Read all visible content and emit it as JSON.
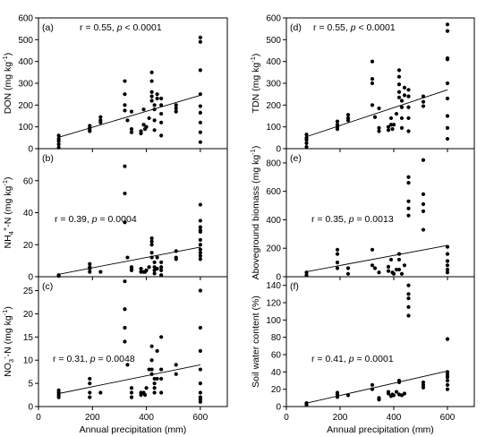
{
  "chart_data": {
    "type": "scatter",
    "layout": "3x2 panels sharing x axis",
    "xlabel": "Annual precipitation (mm)",
    "xlim": [
      0,
      700
    ],
    "xticks": [
      0,
      200,
      400,
      600
    ],
    "panels": [
      {
        "id": "a",
        "label": "(a)",
        "r_text": "r = 0.55, ",
        "p_text": "p < 0.0001",
        "ylabel": [
          "DON (mg kg",
          "-1",
          ")"
        ],
        "ylim": [
          0,
          600
        ],
        "yticks": [
          0,
          100,
          200,
          300,
          400,
          500,
          600
        ],
        "fit": [
          [
            75,
            52
          ],
          [
            600,
            245
          ]
        ],
        "points": [
          [
            75,
            60
          ],
          [
            75,
            45
          ],
          [
            75,
            35
          ],
          [
            75,
            20
          ],
          [
            75,
            5
          ],
          [
            190,
            105
          ],
          [
            190,
            95
          ],
          [
            190,
            85
          ],
          [
            190,
            80
          ],
          [
            230,
            145
          ],
          [
            230,
            130
          ],
          [
            230,
            120
          ],
          [
            320,
            310
          ],
          [
            320,
            250
          ],
          [
            320,
            200
          ],
          [
            320,
            175
          ],
          [
            330,
            130
          ],
          [
            345,
            170
          ],
          [
            345,
            90
          ],
          [
            345,
            75
          ],
          [
            380,
            80
          ],
          [
            380,
            70
          ],
          [
            390,
            180
          ],
          [
            390,
            110
          ],
          [
            395,
            90
          ],
          [
            400,
            100
          ],
          [
            410,
            140
          ],
          [
            420,
            350
          ],
          [
            420,
            310
          ],
          [
            420,
            260
          ],
          [
            420,
            240
          ],
          [
            420,
            220
          ],
          [
            430,
            200
          ],
          [
            430,
            180
          ],
          [
            430,
            130
          ],
          [
            430,
            85
          ],
          [
            440,
            250
          ],
          [
            440,
            230
          ],
          [
            455,
            230
          ],
          [
            455,
            200
          ],
          [
            455,
            160
          ],
          [
            455,
            120
          ],
          [
            455,
            60
          ],
          [
            510,
            200
          ],
          [
            510,
            185
          ],
          [
            510,
            170
          ],
          [
            600,
            510
          ],
          [
            600,
            490
          ],
          [
            600,
            360
          ],
          [
            600,
            250
          ],
          [
            600,
            195
          ],
          [
            600,
            165
          ],
          [
            600,
            120
          ],
          [
            600,
            75
          ],
          [
            600,
            30
          ]
        ]
      },
      {
        "id": "b",
        "label": "(b)",
        "r_text": "r = 0.39, ",
        "p_text": "p = 0.0004",
        "ylabel": [
          "NH",
          "4",
          "+",
          "-N (mg kg",
          "-1",
          ")"
        ],
        "ylim": [
          0,
          80
        ],
        "yticks": [
          0,
          20,
          40,
          60
        ],
        "fit": [
          [
            75,
            1.5
          ],
          [
            600,
            18.5
          ]
        ],
        "points": [
          [
            75,
            1
          ],
          [
            75,
            0.5
          ],
          [
            190,
            8
          ],
          [
            190,
            6
          ],
          [
            190,
            5
          ],
          [
            190,
            3
          ],
          [
            230,
            3
          ],
          [
            320,
            69
          ],
          [
            320,
            52
          ],
          [
            320,
            34
          ],
          [
            330,
            12
          ],
          [
            345,
            6
          ],
          [
            345,
            5
          ],
          [
            345,
            4
          ],
          [
            380,
            5
          ],
          [
            380,
            3
          ],
          [
            390,
            3
          ],
          [
            395,
            3
          ],
          [
            400,
            4
          ],
          [
            410,
            6
          ],
          [
            420,
            24
          ],
          [
            420,
            22
          ],
          [
            420,
            20
          ],
          [
            420,
            15
          ],
          [
            420,
            12
          ],
          [
            430,
            9
          ],
          [
            430,
            6
          ],
          [
            430,
            4
          ],
          [
            430,
            2
          ],
          [
            440,
            12
          ],
          [
            440,
            5
          ],
          [
            455,
            9
          ],
          [
            455,
            6
          ],
          [
            455,
            4
          ],
          [
            455,
            1
          ],
          [
            510,
            16
          ],
          [
            510,
            12
          ],
          [
            510,
            11
          ],
          [
            600,
            45
          ],
          [
            600,
            35
          ],
          [
            600,
            31
          ],
          [
            600,
            29
          ],
          [
            600,
            28
          ],
          [
            600,
            23
          ],
          [
            600,
            20
          ],
          [
            600,
            17
          ],
          [
            600,
            15
          ],
          [
            600,
            13
          ],
          [
            600,
            11
          ]
        ]
      },
      {
        "id": "c",
        "label": "(c)",
        "r_text": "r = 0.31, ",
        "p_text": "p = 0.0048",
        "ylabel": [
          "NO",
          "3",
          "-",
          "-N (mg kg",
          "-1",
          ")"
        ],
        "ylim": [
          0,
          28
        ],
        "yticks": [
          0,
          5,
          10,
          15,
          20,
          25
        ],
        "fit": [
          [
            75,
            2.8
          ],
          [
            600,
            9.0
          ]
        ],
        "points": [
          [
            75,
            3.5
          ],
          [
            75,
            3
          ],
          [
            75,
            2.5
          ],
          [
            75,
            2
          ],
          [
            190,
            6
          ],
          [
            190,
            5
          ],
          [
            190,
            3
          ],
          [
            190,
            2
          ],
          [
            230,
            3
          ],
          [
            320,
            27
          ],
          [
            320,
            21
          ],
          [
            320,
            17
          ],
          [
            320,
            14
          ],
          [
            330,
            9
          ],
          [
            345,
            4
          ],
          [
            345,
            3
          ],
          [
            345,
            2
          ],
          [
            380,
            3
          ],
          [
            380,
            2.5
          ],
          [
            390,
            3
          ],
          [
            395,
            2.5
          ],
          [
            400,
            4
          ],
          [
            410,
            8
          ],
          [
            420,
            13
          ],
          [
            420,
            10
          ],
          [
            420,
            8
          ],
          [
            420,
            7
          ],
          [
            430,
            6
          ],
          [
            430,
            5
          ],
          [
            430,
            4
          ],
          [
            430,
            3
          ],
          [
            440,
            12
          ],
          [
            440,
            6
          ],
          [
            455,
            15
          ],
          [
            455,
            8
          ],
          [
            455,
            6
          ],
          [
            455,
            3
          ],
          [
            510,
            9
          ],
          [
            510,
            7
          ],
          [
            600,
            25
          ],
          [
            600,
            17
          ],
          [
            600,
            12
          ],
          [
            600,
            8
          ],
          [
            600,
            5
          ],
          [
            600,
            3
          ],
          [
            600,
            2
          ],
          [
            600,
            1.5
          ],
          [
            600,
            1
          ]
        ]
      },
      {
        "id": "d",
        "label": "(d)",
        "r_text": "r = 0.55, ",
        "p_text": "p < 0.0001",
        "ylabel": [
          "TDN (mg kg",
          "-1",
          ")"
        ],
        "ylim": [
          0,
          600
        ],
        "yticks": [
          0,
          100,
          200,
          300,
          400,
          500,
          600
        ],
        "fit": [
          [
            75,
            55
          ],
          [
            600,
            270
          ]
        ],
        "points": [
          [
            75,
            65
          ],
          [
            75,
            50
          ],
          [
            75,
            40
          ],
          [
            75,
            25
          ],
          [
            75,
            8
          ],
          [
            190,
            125
          ],
          [
            190,
            110
          ],
          [
            190,
            100
          ],
          [
            190,
            90
          ],
          [
            230,
            155
          ],
          [
            230,
            140
          ],
          [
            230,
            130
          ],
          [
            320,
            400
          ],
          [
            320,
            320
          ],
          [
            320,
            300
          ],
          [
            320,
            200
          ],
          [
            330,
            145
          ],
          [
            345,
            185
          ],
          [
            345,
            95
          ],
          [
            345,
            80
          ],
          [
            380,
            100
          ],
          [
            380,
            85
          ],
          [
            390,
            140
          ],
          [
            390,
            110
          ],
          [
            395,
            90
          ],
          [
            400,
            110
          ],
          [
            410,
            160
          ],
          [
            420,
            360
          ],
          [
            420,
            330
          ],
          [
            420,
            295
          ],
          [
            420,
            260
          ],
          [
            420,
            235
          ],
          [
            430,
            220
          ],
          [
            430,
            190
          ],
          [
            430,
            140
          ],
          [
            430,
            95
          ],
          [
            440,
            280
          ],
          [
            440,
            245
          ],
          [
            455,
            270
          ],
          [
            455,
            240
          ],
          [
            455,
            190
          ],
          [
            455,
            140
          ],
          [
            455,
            80
          ],
          [
            510,
            240
          ],
          [
            510,
            215
          ],
          [
            510,
            195
          ],
          [
            600,
            570
          ],
          [
            600,
            540
          ],
          [
            600,
            415
          ],
          [
            600,
            410
          ],
          [
            600,
            300
          ],
          [
            600,
            230
          ],
          [
            600,
            150
          ],
          [
            600,
            95
          ],
          [
            600,
            45
          ]
        ]
      },
      {
        "id": "e",
        "label": "(e)",
        "r_text": "r = 0.35, ",
        "p_text": "p = 0.0013",
        "ylabel": [
          "Aboveground biomass (mg kg",
          "-1",
          ")"
        ],
        "ylim": [
          0,
          900
        ],
        "yticks": [
          0,
          200,
          400,
          600,
          800
        ],
        "fit": [
          [
            75,
            35
          ],
          [
            600,
            220
          ]
        ],
        "points": [
          [
            75,
            30
          ],
          [
            75,
            10
          ],
          [
            190,
            190
          ],
          [
            190,
            160
          ],
          [
            190,
            100
          ],
          [
            190,
            60
          ],
          [
            230,
            60
          ],
          [
            230,
            20
          ],
          [
            320,
            190
          ],
          [
            320,
            80
          ],
          [
            330,
            60
          ],
          [
            345,
            30
          ],
          [
            380,
            70
          ],
          [
            380,
            40
          ],
          [
            390,
            120
          ],
          [
            395,
            30
          ],
          [
            400,
            20
          ],
          [
            410,
            50
          ],
          [
            420,
            160
          ],
          [
            420,
            120
          ],
          [
            420,
            50
          ],
          [
            430,
            20
          ],
          [
            440,
            80
          ],
          [
            455,
            700
          ],
          [
            455,
            660
          ],
          [
            455,
            530
          ],
          [
            455,
            480
          ],
          [
            455,
            430
          ],
          [
            510,
            820
          ],
          [
            510,
            580
          ],
          [
            510,
            510
          ],
          [
            510,
            460
          ],
          [
            510,
            330
          ],
          [
            600,
            210
          ],
          [
            600,
            160
          ],
          [
            600,
            110
          ],
          [
            600,
            80
          ],
          [
            600,
            50
          ],
          [
            600,
            30
          ]
        ]
      },
      {
        "id": "f",
        "label": "(f)",
        "r_text": "r = 0.41, ",
        "p_text": "p = 0.0001",
        "ylabel": [
          "Soil water content (%)"
        ],
        "ylim": [
          0,
          150
        ],
        "yticks": [
          0,
          20,
          40,
          60,
          80,
          100,
          120,
          140
        ],
        "fit": [
          [
            75,
            4
          ],
          [
            600,
            41
          ]
        ],
        "points": [
          [
            75,
            4
          ],
          [
            75,
            2
          ],
          [
            190,
            16
          ],
          [
            190,
            14
          ],
          [
            190,
            11
          ],
          [
            230,
            13
          ],
          [
            320,
            25
          ],
          [
            320,
            20
          ],
          [
            345,
            10
          ],
          [
            345,
            8
          ],
          [
            380,
            17
          ],
          [
            380,
            15
          ],
          [
            390,
            12
          ],
          [
            395,
            14
          ],
          [
            400,
            13
          ],
          [
            410,
            17
          ],
          [
            420,
            30
          ],
          [
            420,
            28
          ],
          [
            420,
            14
          ],
          [
            430,
            13
          ],
          [
            440,
            15
          ],
          [
            455,
            140
          ],
          [
            455,
            130
          ],
          [
            455,
            125
          ],
          [
            455,
            115
          ],
          [
            455,
            105
          ],
          [
            510,
            28
          ],
          [
            510,
            25
          ],
          [
            510,
            22
          ],
          [
            600,
            78
          ],
          [
            600,
            40
          ],
          [
            600,
            37
          ],
          [
            600,
            34
          ],
          [
            600,
            30
          ],
          [
            600,
            25
          ],
          [
            600,
            20
          ]
        ]
      }
    ]
  }
}
